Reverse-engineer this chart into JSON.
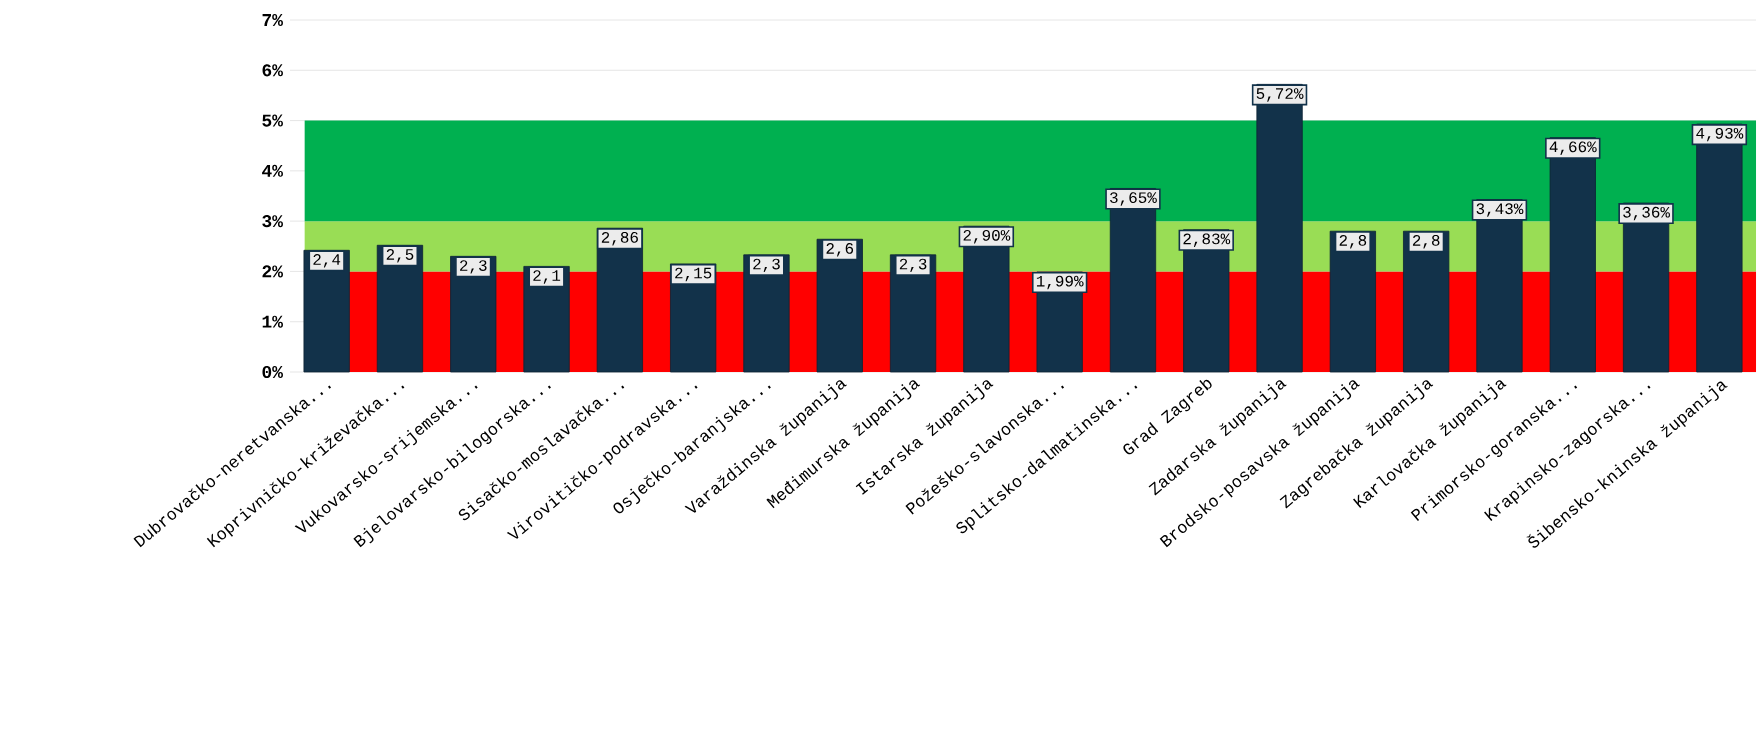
{
  "chart_data": {
    "type": "bar",
    "categories": [
      "Dubrovačko-neretvanska...",
      "Koprivničko-križevačka...",
      "Vukovarsko-srijemska...",
      "Bjelovarsko-bilogorska...",
      "Sisačko-moslavačka...",
      "Virovitičko-podravska...",
      "Osječko-baranjska...",
      "Varaždinska županija",
      "Međimurska županija",
      "Istarska županija",
      "Požeško-slavonska...",
      "Splitsko-dalmatinska...",
      "Grad Zagreb",
      "Zadarska županija",
      "Brodsko-posavska županija",
      "Zagrebačka županija",
      "Karlovačka županija",
      "Primorsko-goranska...",
      "Krapinsko-zagorska...",
      "Šibensko-kninska županija"
    ],
    "values": [
      2.42,
      2.52,
      2.3,
      2.1,
      2.86,
      2.15,
      2.33,
      2.64,
      2.33,
      2.9,
      1.99,
      3.65,
      2.83,
      5.72,
      2.8,
      2.8,
      3.43,
      4.66,
      3.36,
      4.93
    ],
    "value_labels": [
      "2,4",
      "2,5",
      "2,3",
      "2,1",
      "2,86",
      "2,15",
      "2,3",
      "2,6",
      "2,3",
      "2,90%",
      "1,99%",
      "3,65%",
      "2,83%",
      "5,72%",
      "2,8",
      "2,8",
      "3,43%",
      "4,66%",
      "3,36%",
      "4,93%"
    ],
    "color": "#12324a",
    "ylim": [
      0,
      7
    ],
    "yticks": [
      {
        "value": 0,
        "label": "0%"
      },
      {
        "value": 1,
        "label": "1%"
      },
      {
        "value": 2,
        "label": "2%"
      },
      {
        "value": 3,
        "label": "3%"
      },
      {
        "value": 4,
        "label": "4%"
      },
      {
        "value": 5,
        "label": "5%"
      },
      {
        "value": 6,
        "label": "6%"
      },
      {
        "value": 7,
        "label": "7%"
      }
    ],
    "bands": [
      {
        "axis": "y",
        "from": 0,
        "to": 2,
        "color": "#ff0000"
      },
      {
        "axis": "y",
        "from": 2,
        "to": 3,
        "color": "#99dd55"
      },
      {
        "axis": "y",
        "from": 3,
        "to": 5,
        "color": "#00b050"
      }
    ],
    "grid": "y"
  }
}
